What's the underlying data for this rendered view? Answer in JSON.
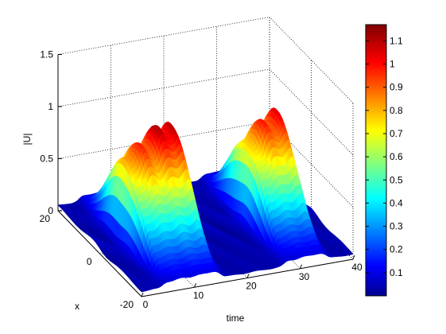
{
  "chart_data": {
    "type": "surface",
    "title": "",
    "xlabel": "time",
    "ylabel": "x",
    "zlabel": "|U|",
    "xlim": [
      0,
      40
    ],
    "ylim": [
      -20,
      20
    ],
    "zlim": [
      0,
      1.5
    ],
    "grid": true,
    "colormap": "jet",
    "x_ticks": [
      "0",
      "10",
      "20",
      "30",
      "40"
    ],
    "y_ticks": [
      "-20",
      "0",
      "20"
    ],
    "z_ticks": [
      "0",
      "0.5",
      "1",
      "1.5"
    ],
    "colorbar": {
      "range": [
        0.0,
        1.17
      ],
      "ticks": [
        "0.1",
        "0.2",
        "0.3",
        "0.4",
        "0.5",
        "0.6",
        "0.7",
        "0.8",
        "0.9",
        "1",
        "1.1"
      ]
    },
    "peaks": [
      {
        "time": [
          4,
          15
        ],
        "x_center": 0,
        "max_amplitude": 1.17
      },
      {
        "time": [
          27,
          35
        ],
        "x_center": 0,
        "max_amplitude": 1.1
      }
    ],
    "background_amplitude": 0.05
  }
}
